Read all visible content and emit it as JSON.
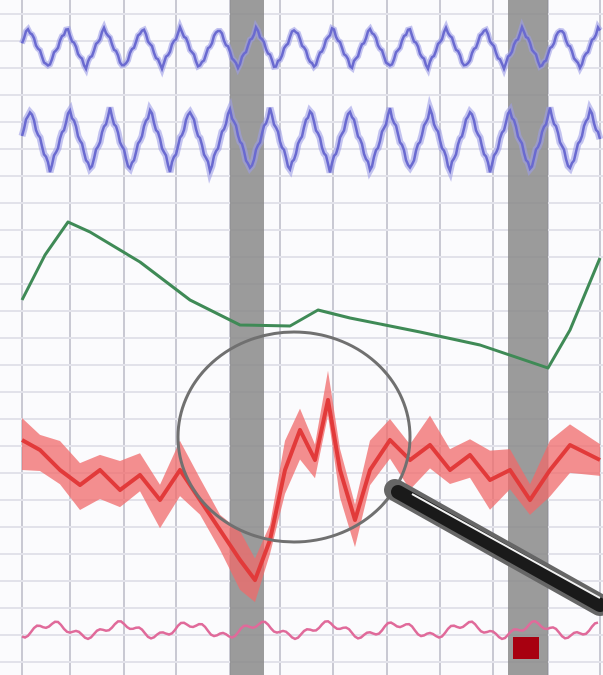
{
  "colors": {
    "background": "#fbfbfd",
    "grid": "#c9c9d3",
    "grid_faint": "#e2e2ea",
    "blue_trace": "#6a6ad0",
    "blue_trace_light": "#9c9ce6",
    "green_trace": "#3f8a56",
    "red_band": "#f06a6a",
    "red_core": "#e23a3a",
    "pink_trace": "#e06a9a",
    "marker_bar": "#8a8a8a",
    "lens_ring": "#707070",
    "handle": "#1a1a1a",
    "handle_edge": "#666666",
    "event_marker": "#a80010"
  },
  "icons": {
    "magnifier": "magnifying-glass-icon",
    "event_marker": "square-marker-icon"
  },
  "traces": [
    {
      "name": "respiration-upper",
      "type": "oscillation"
    },
    {
      "name": "respiration-lower",
      "type": "oscillation"
    },
    {
      "name": "skin-conductance",
      "type": "slow-wave"
    },
    {
      "name": "cardio-band",
      "type": "noisy-band"
    },
    {
      "name": "pulse",
      "type": "small-oscillation"
    }
  ],
  "marker_bars": 2
}
